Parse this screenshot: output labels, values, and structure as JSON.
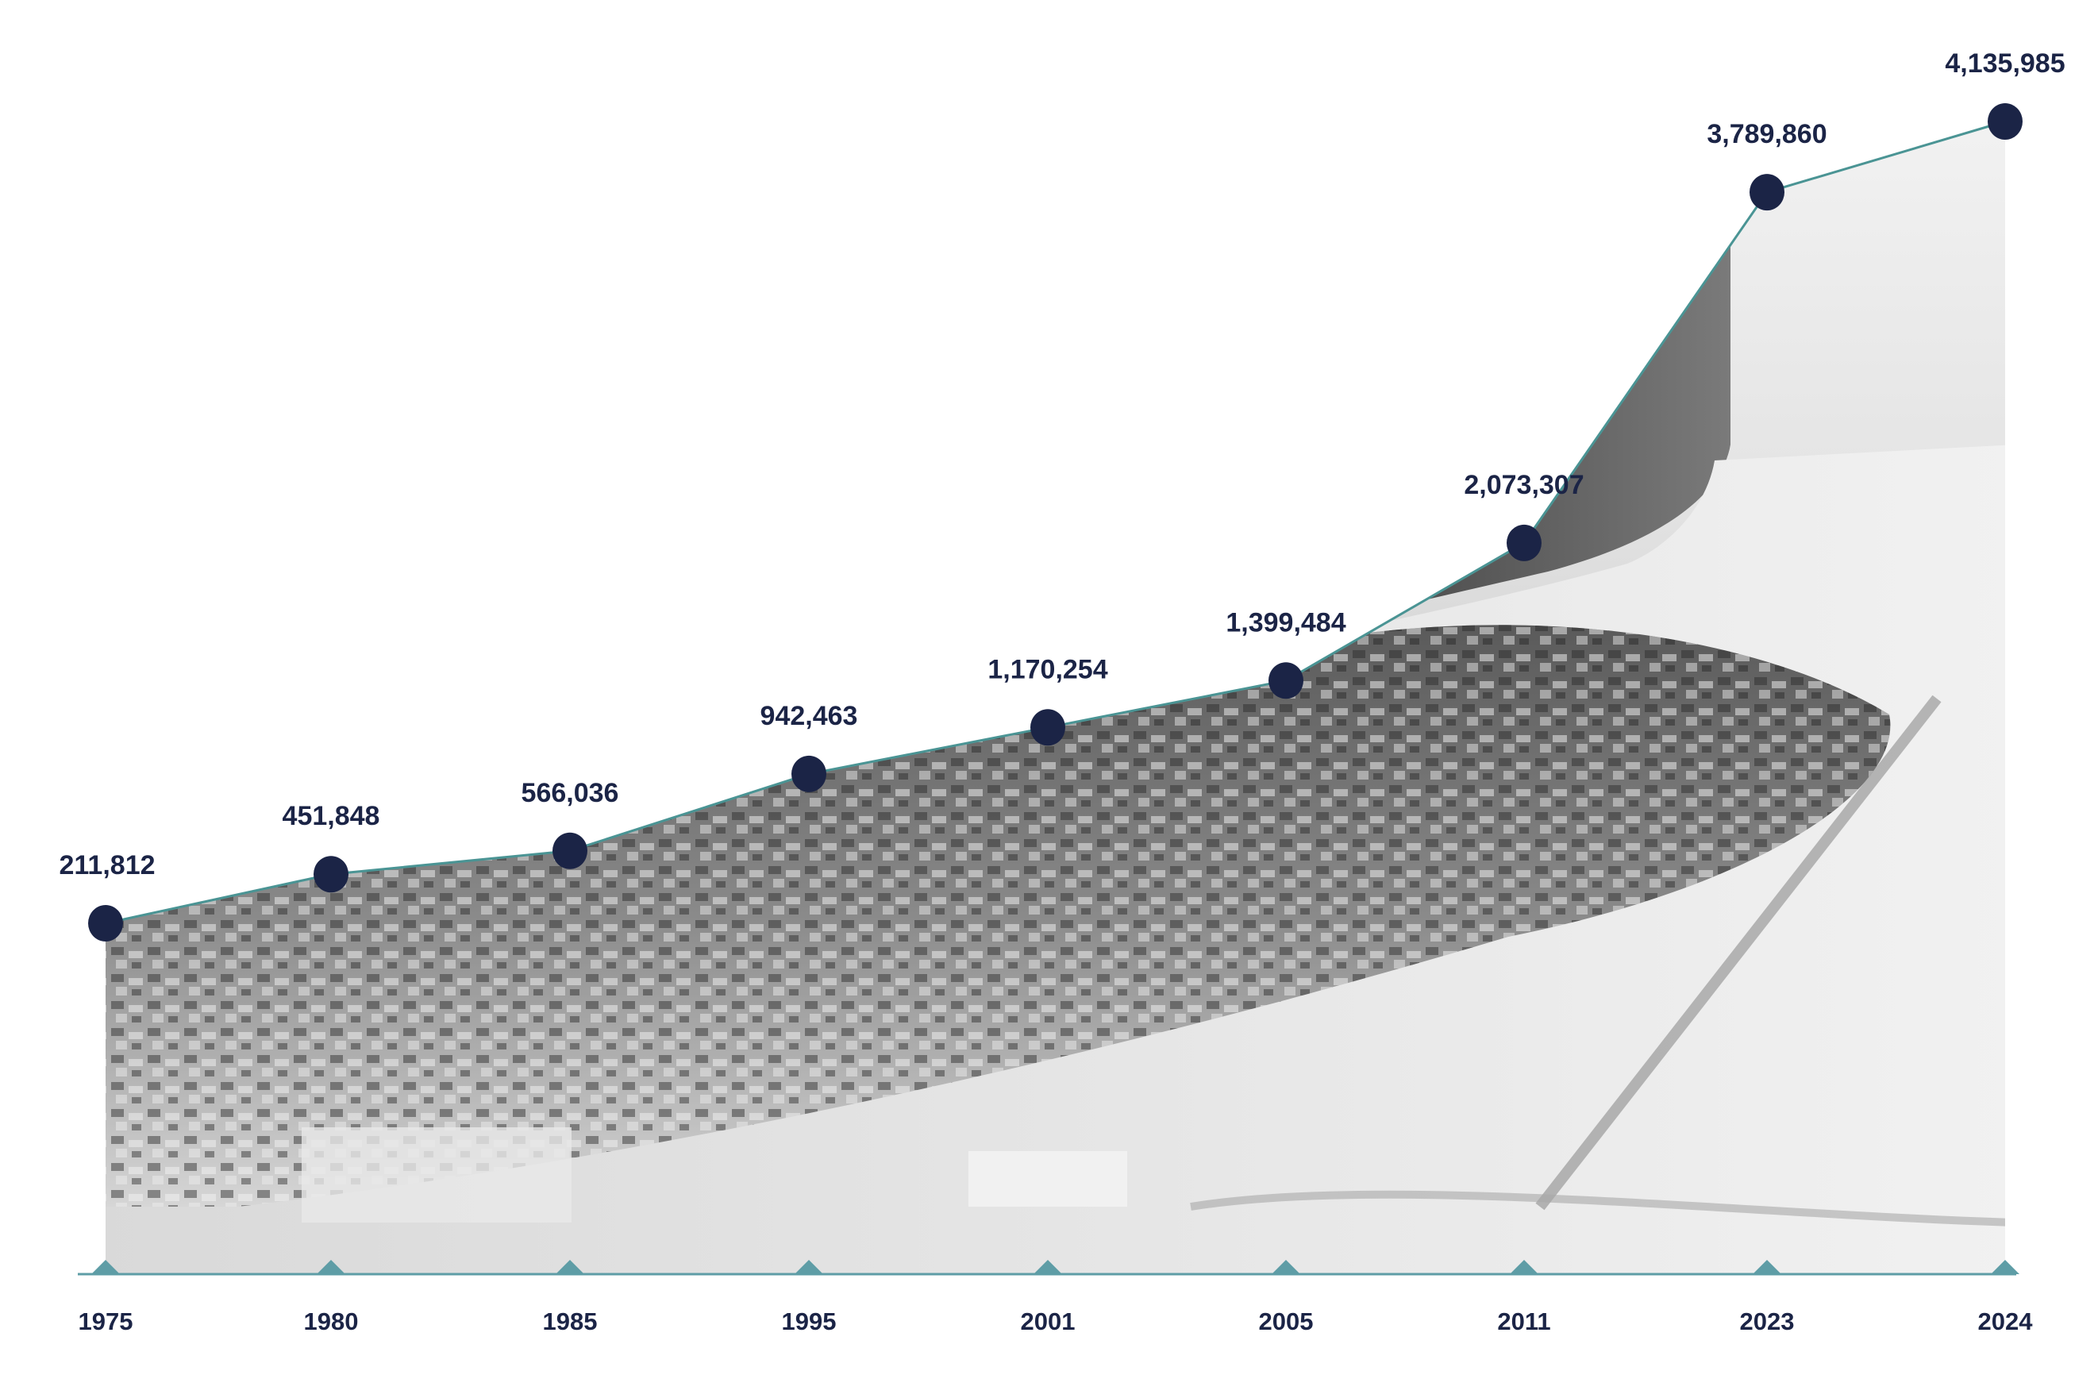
{
  "chart_data": {
    "type": "area",
    "title": "",
    "xlabel": "",
    "ylabel": "",
    "x": [
      "1975",
      "1980",
      "1985",
      "1995",
      "2001",
      "2005",
      "2011",
      "2023",
      "2024"
    ],
    "values": [
      211812,
      451848,
      566036,
      942463,
      1170254,
      1399484,
      2073307,
      3789860,
      4135985
    ],
    "value_labels": [
      "211,812",
      "451,848",
      "566,036",
      "942,463",
      "1,170,254",
      "1,399,484",
      "2,073,307",
      "3,789,860",
      "4,135,985"
    ],
    "x_tick_labels": [
      "1975",
      "1980",
      "1985",
      "1995",
      "2001",
      "2005",
      "2011",
      "2023",
      "2024"
    ],
    "grid": false,
    "legend": "none",
    "area_fill": "aerial-photo-texture"
  },
  "colors": {
    "line": "#4a9494",
    "marker": "#1b2446",
    "label_text": "#1b2446",
    "axis": "#5e9da6",
    "tick_marker": "#5e9da6"
  }
}
